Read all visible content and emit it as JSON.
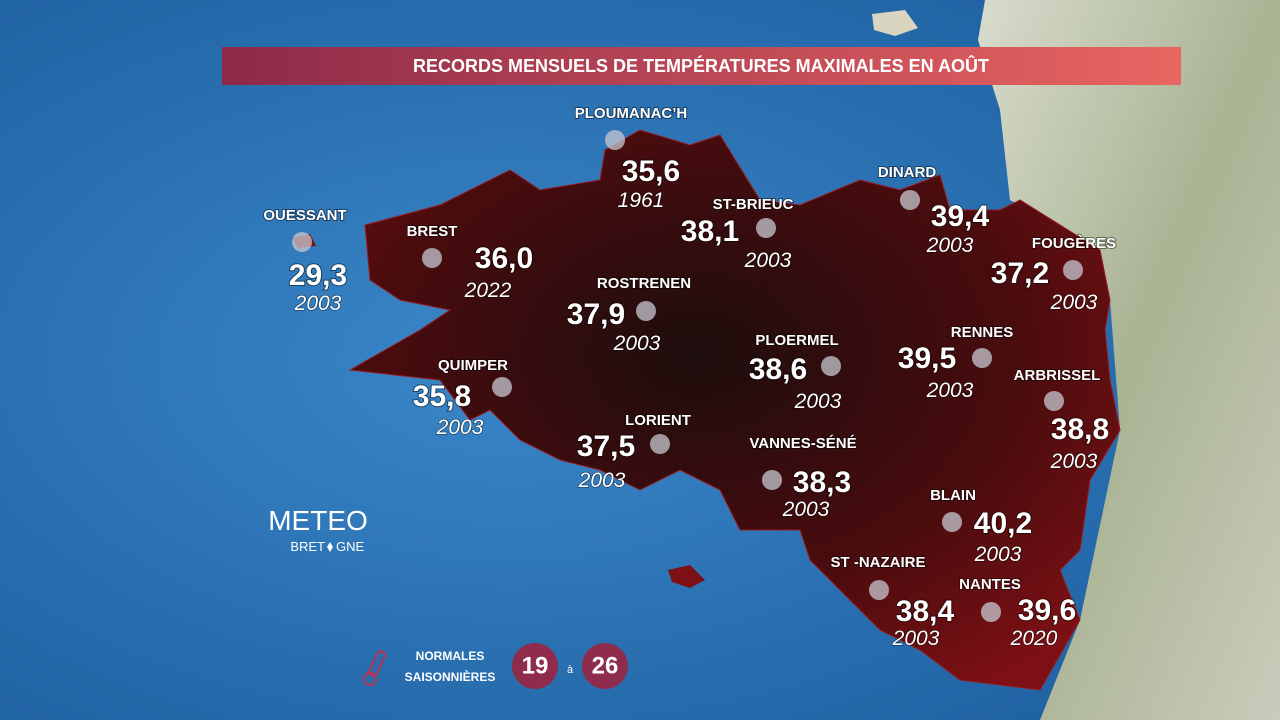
{
  "title": "RECORDS MENSUELS DE TEMPÉRATURES MAXIMALES EN AOÛT",
  "stations": [
    {
      "name": "OUESSANT",
      "temp": "29,3",
      "year": "2003"
    },
    {
      "name": "BREST",
      "temp": "36,0",
      "year": "2022"
    },
    {
      "name": "PLOUMANAC’H",
      "temp": "35,6",
      "year": "1961"
    },
    {
      "name": "ST-BRIEUC",
      "temp": "38,1",
      "year": "2003"
    },
    {
      "name": "DINARD",
      "temp": "39,4",
      "year": "2003"
    },
    {
      "name": "FOUGÈRES",
      "temp": "37,2",
      "year": "2003"
    },
    {
      "name": "ROSTRENEN",
      "temp": "37,9",
      "year": "2003"
    },
    {
      "name": "PLOERMEL",
      "temp": "38,6",
      "year": "2003"
    },
    {
      "name": "RENNES",
      "temp": "39,5",
      "year": "2003"
    },
    {
      "name": "QUIMPER",
      "temp": "35,8",
      "year": "2003"
    },
    {
      "name": "ARBRISSEL",
      "temp": "38,8",
      "year": "2003"
    },
    {
      "name": "LORIENT",
      "temp": "37,5",
      "year": "2003"
    },
    {
      "name": "VANNES-SÉNÉ",
      "temp": "38,3",
      "year": "2003"
    },
    {
      "name": "BLAIN",
      "temp": "40,2",
      "year": "2003"
    },
    {
      "name": "ST -NAZAIRE",
      "temp": "38,4",
      "year": "2003"
    },
    {
      "name": "NANTES",
      "temp": "39,6",
      "year": "2020"
    }
  ],
  "legend": {
    "line1": "NORMALES",
    "line2": "SAISONNIÈRES",
    "min": "19",
    "sep": "à",
    "max": "26"
  },
  "logo": {
    "line1": "METEO",
    "line2a": "BRET",
    "line2b": "GNE"
  }
}
